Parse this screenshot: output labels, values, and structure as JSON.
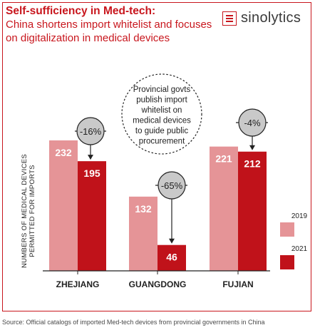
{
  "header": {
    "title_main": "Self-sufficiency in Med-tech:",
    "title_sub": "China shortens import whitelist and focuses on digitalization in medical devices",
    "brand": "sinolytics"
  },
  "source": "Source: Official catalogs of imported Med-tech devices from provincial governments in China",
  "colors": {
    "accent": "#c8161d",
    "light": "#e59497",
    "dark": "#c0121a",
    "circle": "#c9c9c9"
  },
  "chart_data": {
    "type": "bar",
    "ylabel": "NUMBERS OF MEDICAL DEVICES PERMITTED FOR IMPORTS",
    "categories": [
      "ZHEJIANG",
      "GUANGDONG",
      "FUJIAN"
    ],
    "series": [
      {
        "name": "2019",
        "values": [
          232,
          132,
          221
        ]
      },
      {
        "name": "2021",
        "values": [
          195,
          46,
          212
        ]
      }
    ],
    "changes": [
      "-16%",
      "-65%",
      "-4%"
    ],
    "annotation": "Provincial govts publish import whitelist on medical devices to guide public procurement",
    "legend_position": "right"
  }
}
